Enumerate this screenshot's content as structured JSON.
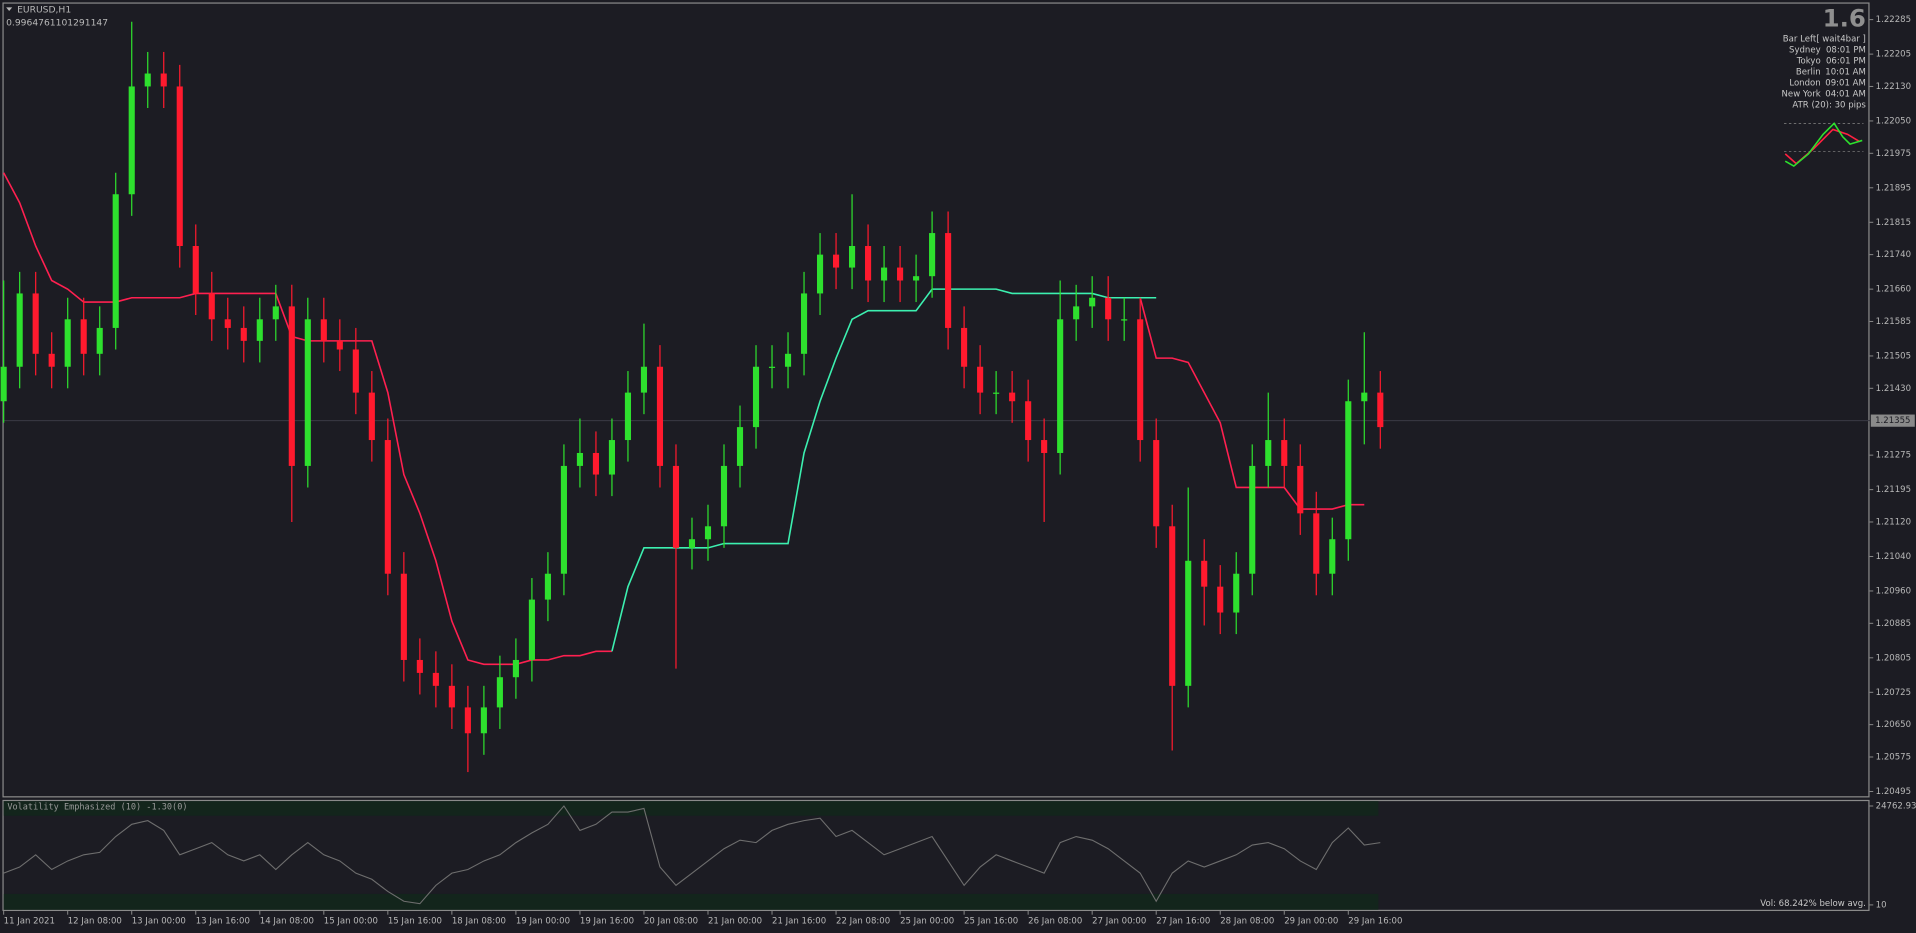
{
  "header": {
    "symbol": "EURUSD,H1",
    "value": "0.9964761101291147"
  },
  "info_panel": {
    "value": "1.6",
    "bar_left": "Bar Left[ wait4bar ]",
    "sessions": [
      {
        "city": "Sydney",
        "time": "08:01 PM"
      },
      {
        "city": "Tokyo",
        "time": "06:01 PM"
      },
      {
        "city": "Berlin",
        "time": "10:01 AM"
      },
      {
        "city": "London",
        "time": "09:01 AM"
      },
      {
        "city": "New York",
        "time": "04:01 AM"
      }
    ],
    "atr": "ATR (20): 30 pips"
  },
  "chart_data": [
    {
      "type": "candlestick",
      "categories": [
        "11 Jan 2021",
        null,
        null,
        null,
        "12 Jan 08:00",
        null,
        null,
        null,
        "13 Jan 00:00",
        null,
        null,
        null,
        "13 Jan 16:00",
        null,
        null,
        null,
        "14 Jan 08:00",
        null,
        null,
        null,
        "15 Jan 00:00",
        null,
        null,
        null,
        "15 Jan 16:00",
        null,
        null,
        null,
        "18 Jan 08:00",
        null,
        null,
        null,
        "19 Jan 00:00",
        null,
        null,
        null,
        "19 Jan 16:00",
        null,
        null,
        null,
        "20 Jan 08:00",
        null,
        null,
        null,
        "21 Jan 00:00",
        null,
        null,
        null,
        "21 Jan 16:00",
        null,
        null,
        null,
        "22 Jan 08:00",
        null,
        null,
        null,
        "25 Jan 00:00",
        null,
        null,
        null,
        "25 Jan 16:00",
        null,
        null,
        null,
        "26 Jan 08:00",
        null,
        null,
        null,
        "27 Jan 00:00",
        null,
        null,
        null,
        "27 Jan 16:00",
        null,
        null,
        null,
        "28 Jan 08:00",
        null,
        null,
        null,
        "29 Jan 00:00",
        null,
        null,
        null,
        "29 Jan 16:00",
        null,
        null
      ],
      "open": [
        1.214,
        1.2148,
        1.2165,
        1.2151,
        1.2148,
        1.2159,
        1.2151,
        1.2157,
        1.2188,
        1.2213,
        1.2216,
        1.2213,
        1.2176,
        1.2165,
        1.2159,
        1.2157,
        1.2154,
        1.2159,
        1.2162,
        1.2125,
        1.2159,
        1.2154,
        1.2152,
        1.2142,
        1.2131,
        1.21,
        1.208,
        1.2077,
        1.2074,
        1.2069,
        1.2063,
        1.2069,
        1.2076,
        1.208,
        1.2094,
        1.21,
        1.2125,
        1.2128,
        1.2123,
        1.2131,
        1.2142,
        1.2148,
        1.2125,
        1.2106,
        1.2108,
        1.2111,
        1.2125,
        1.2134,
        1.2148,
        1.2148,
        1.2151,
        1.2165,
        1.2174,
        1.2171,
        1.2176,
        1.2168,
        1.2171,
        1.2168,
        1.2169,
        1.2179,
        1.2157,
        1.2148,
        1.2142,
        1.2142,
        1.214,
        1.2131,
        1.2128,
        1.2159,
        1.2162,
        1.2164,
        1.2159,
        1.2159,
        1.2131,
        1.2111,
        1.2074,
        1.2103,
        1.2097,
        1.2091,
        1.21,
        1.2125,
        1.2131,
        1.2125,
        1.2114,
        1.21,
        1.2108,
        1.214,
        1.2142
      ],
      "high": [
        1.2168,
        1.217,
        1.217,
        1.2156,
        1.2164,
        1.2164,
        1.2162,
        1.2193,
        1.2228,
        1.2221,
        1.2221,
        1.2218,
        1.2181,
        1.217,
        1.2164,
        1.2162,
        1.2164,
        1.2167,
        1.2167,
        1.2164,
        1.2164,
        1.2159,
        1.2157,
        1.2147,
        1.2136,
        1.2105,
        1.2085,
        1.2082,
        1.2079,
        1.2074,
        1.2074,
        1.2081,
        1.2085,
        1.2099,
        1.2105,
        1.213,
        1.2136,
        1.2133,
        1.2136,
        1.2147,
        1.2158,
        1.2153,
        1.213,
        1.2113,
        1.2116,
        1.213,
        1.2139,
        1.2153,
        1.2153,
        1.2156,
        1.217,
        1.2179,
        1.2179,
        1.2188,
        1.2181,
        1.2176,
        1.2176,
        1.2174,
        1.2184,
        1.2184,
        1.2162,
        1.2153,
        1.2147,
        1.2147,
        1.2145,
        1.2136,
        1.2168,
        1.2167,
        1.2169,
        1.2169,
        1.2164,
        1.2164,
        1.2136,
        1.2116,
        1.212,
        1.2108,
        1.2102,
        1.2105,
        1.213,
        1.2142,
        1.2136,
        1.213,
        1.2119,
        1.2113,
        1.2145,
        1.2156,
        1.2147
      ],
      "low": [
        1.2135,
        1.2143,
        1.2146,
        1.2143,
        1.2143,
        1.2146,
        1.2146,
        1.2152,
        1.2183,
        1.2208,
        1.2208,
        1.2171,
        1.216,
        1.2154,
        1.2152,
        1.2149,
        1.2149,
        1.2154,
        1.2112,
        1.212,
        1.2149,
        1.2147,
        1.2137,
        1.2126,
        1.2095,
        1.2075,
        1.2072,
        1.2069,
        1.2064,
        1.2054,
        1.2058,
        1.2064,
        1.2071,
        1.2075,
        1.2089,
        1.2095,
        1.212,
        1.2118,
        1.2118,
        1.2126,
        1.2137,
        1.212,
        1.2078,
        1.2101,
        1.2103,
        1.2106,
        1.212,
        1.2129,
        1.2143,
        1.2143,
        1.2146,
        1.216,
        1.2166,
        1.2166,
        1.2163,
        1.2163,
        1.2163,
        1.2163,
        1.2164,
        1.2152,
        1.2143,
        1.2137,
        1.2137,
        1.2135,
        1.2126,
        1.2112,
        1.2123,
        1.2154,
        1.2157,
        1.2154,
        1.2154,
        1.2126,
        1.2106,
        1.2059,
        1.2069,
        1.2088,
        1.2086,
        1.2086,
        1.2095,
        1.212,
        1.212,
        1.2109,
        1.2095,
        1.2095,
        1.2103,
        1.213,
        1.2129
      ],
      "close": [
        1.2148,
        1.2165,
        1.2151,
        1.2148,
        1.2159,
        1.2151,
        1.2157,
        1.2188,
        1.2213,
        1.2216,
        1.2213,
        1.2176,
        1.2165,
        1.2159,
        1.2157,
        1.2154,
        1.2159,
        1.2162,
        1.2125,
        1.2159,
        1.2154,
        1.2152,
        1.2142,
        1.2131,
        1.21,
        1.208,
        1.2077,
        1.2074,
        1.2069,
        1.2063,
        1.2069,
        1.2076,
        1.208,
        1.2094,
        1.21,
        1.2125,
        1.2128,
        1.2123,
        1.2131,
        1.2142,
        1.2148,
        1.2125,
        1.2106,
        1.2108,
        1.2111,
        1.2125,
        1.2134,
        1.2148,
        1.2148,
        1.2151,
        1.2165,
        1.2174,
        1.2171,
        1.2176,
        1.2168,
        1.2171,
        1.2168,
        1.2169,
        1.2179,
        1.2157,
        1.2148,
        1.2142,
        1.2142,
        1.214,
        1.2131,
        1.2128,
        1.2159,
        1.2162,
        1.2164,
        1.2159,
        1.2159,
        1.2131,
        1.2111,
        1.2074,
        1.2103,
        1.2097,
        1.2091,
        1.21,
        1.2125,
        1.2131,
        1.2125,
        1.2114,
        1.21,
        1.2108,
        1.214,
        1.2142,
        1.2134
      ],
      "up_color": "#2ee02e",
      "down_color": "#ff1a2e",
      "lines": [
        {
          "color": "#ff2050",
          "values": [
            1.2193,
            1.2186,
            1.2176,
            1.2168,
            1.2166,
            1.2163,
            1.2163,
            1.2163,
            1.2164,
            1.2164,
            1.2164,
            1.2164,
            1.2165,
            1.2165,
            1.2165,
            1.2165,
            1.2165,
            1.2165,
            1.2155,
            1.2154,
            1.2154,
            1.2154,
            1.2154,
            1.2154,
            1.2142,
            1.2123,
            1.2114,
            1.2103,
            1.2089,
            1.208,
            1.2079,
            1.2079,
            1.2079,
            1.208,
            1.208,
            1.2081,
            1.2081,
            1.2082,
            1.2082,
            null,
            null,
            null,
            null,
            null,
            null,
            null,
            null,
            null,
            null,
            null,
            null,
            null,
            null,
            null,
            null,
            null,
            null,
            null,
            null,
            null,
            null,
            null,
            null,
            null,
            null,
            null,
            null,
            null,
            null,
            null,
            null,
            1.2164,
            1.215,
            1.215,
            1.2149,
            1.2142,
            1.2135,
            1.212,
            1.212,
            1.212,
            1.212,
            1.2115,
            1.2115,
            1.2115,
            1.2116,
            1.2116
          ]
        },
        {
          "color": "#3cf0b0",
          "values": [
            null,
            null,
            null,
            null,
            null,
            null,
            null,
            null,
            null,
            null,
            null,
            null,
            null,
            null,
            null,
            null,
            null,
            null,
            null,
            null,
            null,
            null,
            null,
            null,
            null,
            null,
            null,
            null,
            null,
            null,
            null,
            null,
            null,
            null,
            null,
            null,
            null,
            null,
            1.2082,
            1.2097,
            1.2106,
            1.2106,
            1.2106,
            1.2106,
            1.2106,
            1.2107,
            1.2107,
            1.2107,
            1.2107,
            1.2107,
            1.2128,
            1.214,
            1.215,
            1.2159,
            1.2161,
            1.2161,
            1.2161,
            1.2161,
            1.2166,
            1.2166,
            1.2166,
            1.2166,
            1.2166,
            1.2165,
            1.2165,
            1.2165,
            1.2165,
            1.2165,
            1.2165,
            1.2164,
            1.2164,
            1.2164,
            1.2164,
            null,
            null,
            null,
            null,
            null,
            null,
            null,
            null,
            null,
            null,
            null,
            null,
            null,
            null
          ]
        }
      ],
      "ylim": [
        1.20484,
        1.22322
      ],
      "yticks": [
        1.22285,
        1.22205,
        {
          "value": 1.2213,
          "label": "1.22130"
        },
        {
          "value": 1.2205,
          "label": "1.22050"
        },
        1.21975,
        1.21895,
        1.21815,
        {
          "value": 1.2174,
          "label": "1.21740"
        },
        {
          "value": 1.2166,
          "label": "1.21660"
        },
        1.21585,
        1.21505,
        {
          "value": 1.2143,
          "label": "1.21430"
        },
        1.21275,
        1.21195,
        {
          "value": 1.2112,
          "label": "1.21120"
        },
        {
          "value": 1.2104,
          "label": "1.21040"
        },
        {
          "value": 1.2096,
          "label": "1.20960"
        },
        1.20885,
        1.20805,
        1.20725,
        {
          "value": 1.2065,
          "label": "1.20650"
        },
        1.20575,
        1.20495
      ],
      "current_price": 1.21355
    },
    {
      "type": "line",
      "title": "Volatility Emphasized (10) -1.30(0)",
      "series": [
        {
          "color": "#6e6e6e",
          "values": [
            7960,
            9490,
            12540,
            8870,
            11010,
            12550,
            13150,
            17120,
            20180,
            21100,
            18650,
            12550,
            14070,
            15600,
            12550,
            11010,
            12550,
            8870,
            12550,
            15600,
            12550,
            11010,
            7960,
            6430,
            3370,
            930,
            320,
            4900,
            7960,
            8870,
            11010,
            12550,
            15600,
            18040,
            20180,
            24760,
            18650,
            20180,
            23240,
            23240,
            24150,
            9490,
            4900,
            7960,
            11010,
            14070,
            16210,
            15600,
            18650,
            20180,
            21100,
            21710,
            17120,
            18650,
            15600,
            12550,
            14070,
            15600,
            17120,
            11010,
            4900,
            9490,
            12550,
            11010,
            9490,
            7960,
            15600,
            17120,
            16210,
            14070,
            11010,
            7960,
            930,
            7960,
            11010,
            9490,
            11010,
            12550,
            14990,
            15600,
            14070,
            11010,
            8870,
            15600,
            19260,
            14990,
            15600
          ]
        }
      ],
      "ylim": [
        10,
        24762.937
      ],
      "yticks": [
        10,
        24762.937
      ],
      "annotation": "Vol:  68.242% below avg."
    }
  ]
}
